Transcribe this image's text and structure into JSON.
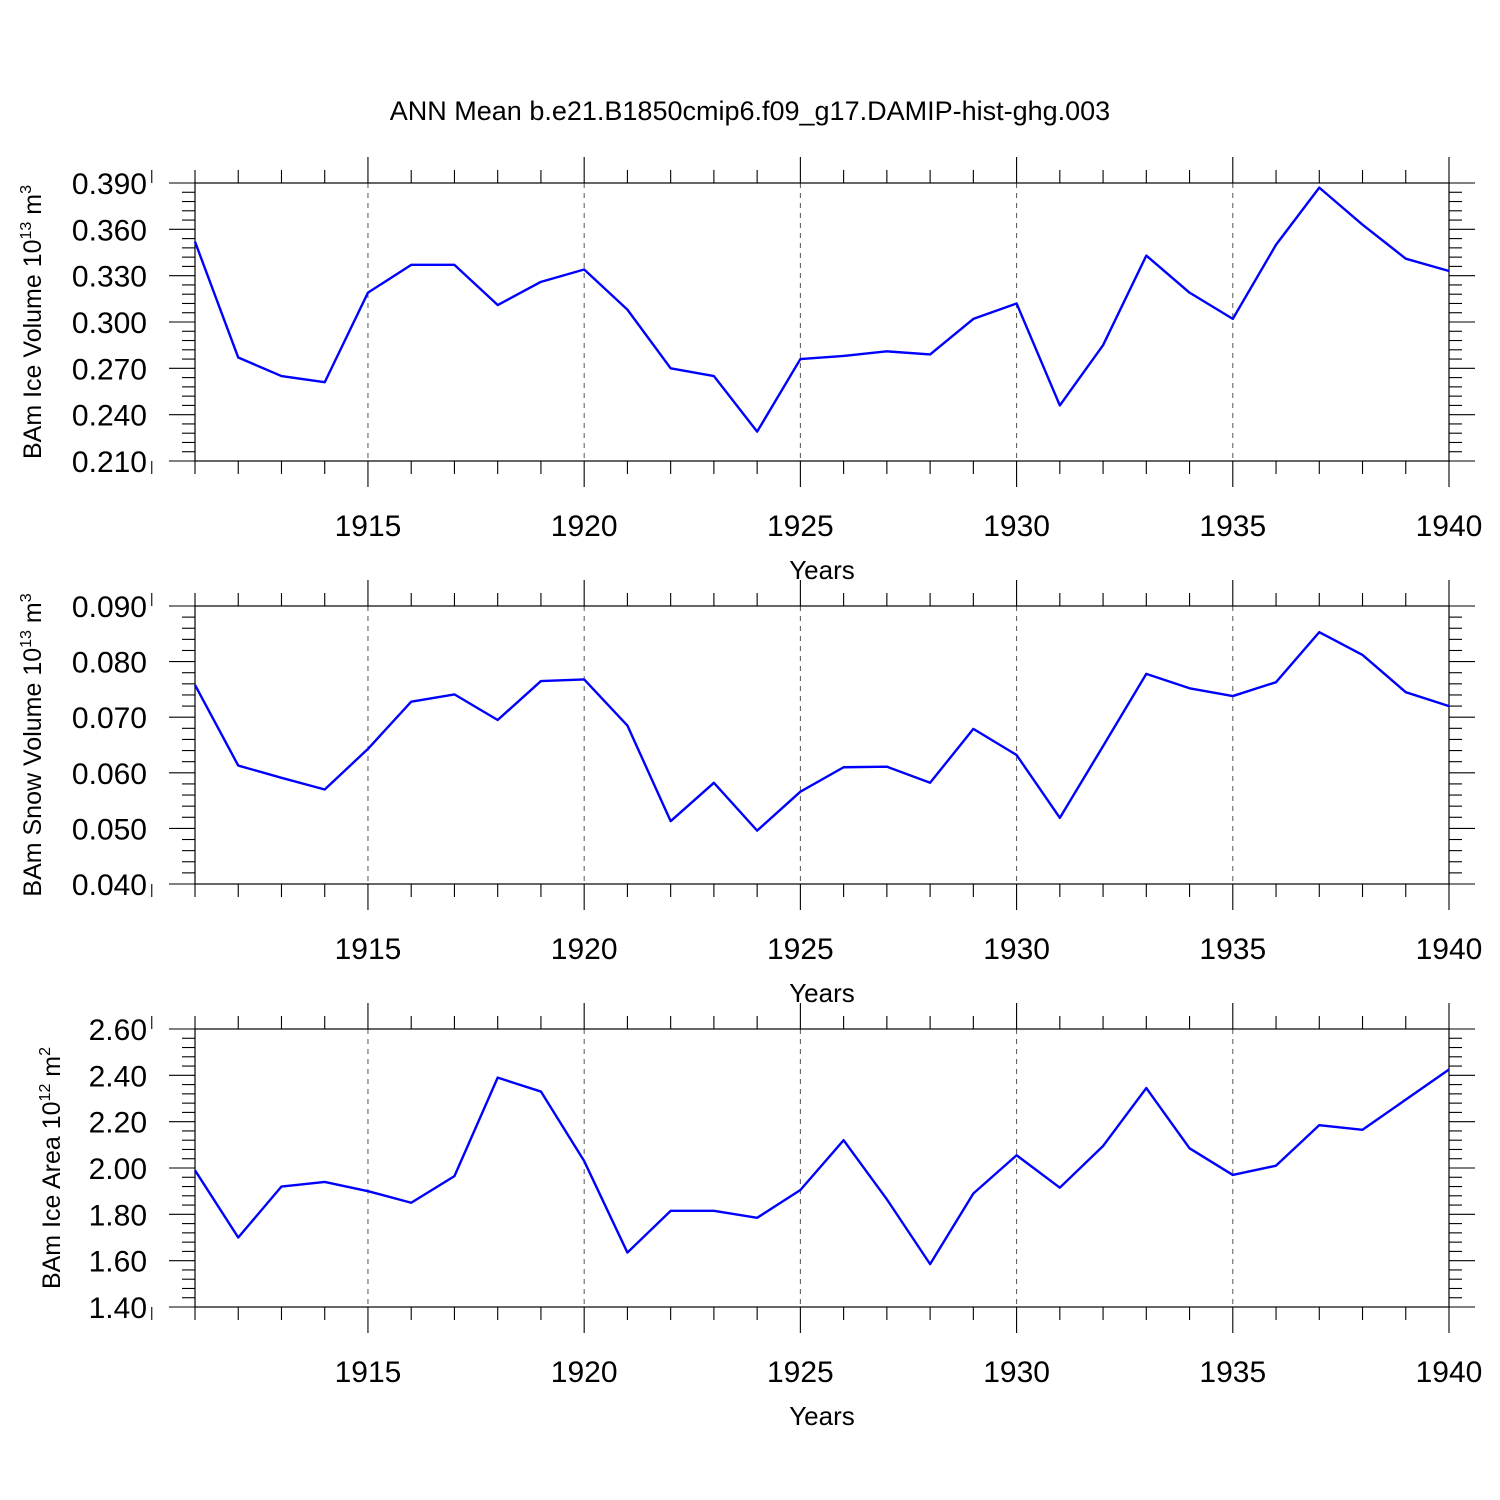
{
  "title": "ANN Mean b.e21.B1850cmip6.f09_g17.DAMIP-hist-ghg.003",
  "colors": {
    "line": "#0000ff",
    "axis": "#000000",
    "grid": "#555555"
  },
  "chart_data": [
    {
      "type": "line",
      "ylabel": "BAm Ice Volume 10",
      "ylabel_exp": "13",
      "ylabel_unit": " m",
      "ylabel_unit_exp": "3",
      "xlabel": "Years",
      "xlim": [
        1911,
        1940
      ],
      "ylim": [
        0.21,
        0.39
      ],
      "yticks": [
        "0.390",
        "0.360",
        "0.330",
        "0.300",
        "0.270",
        "0.240",
        "0.210"
      ],
      "xticks": [
        "1915",
        "1920",
        "1925",
        "1930",
        "1935",
        "1940"
      ],
      "grid": "dashed vertical at labeled years",
      "x": [
        1911,
        1912,
        1913,
        1914,
        1915,
        1916,
        1917,
        1918,
        1919,
        1920,
        1921,
        1922,
        1923,
        1924,
        1925,
        1926,
        1927,
        1928,
        1929,
        1930,
        1931,
        1932,
        1933,
        1934,
        1935,
        1936,
        1937,
        1938,
        1939,
        1940
      ],
      "series": [
        {
          "values": [
            0.352,
            0.277,
            0.265,
            0.261,
            0.319,
            0.337,
            0.337,
            0.311,
            0.326,
            0.334,
            0.308,
            0.27,
            0.265,
            0.229,
            0.276,
            0.278,
            0.281,
            0.279,
            0.302,
            0.312,
            0.246,
            0.285,
            0.343,
            0.319,
            0.302,
            0.35,
            0.387,
            0.363,
            0.341,
            0.333
          ]
        }
      ]
    },
    {
      "type": "line",
      "ylabel": "BAm Snow Volume 10",
      "ylabel_exp": "13",
      "ylabel_unit": " m",
      "ylabel_unit_exp": "3",
      "xlabel": "Years",
      "xlim": [
        1911,
        1940
      ],
      "ylim": [
        0.04,
        0.09
      ],
      "yticks": [
        "0.090",
        "0.080",
        "0.070",
        "0.060",
        "0.050",
        "0.040"
      ],
      "xticks": [
        "1915",
        "1920",
        "1925",
        "1930",
        "1935",
        "1940"
      ],
      "grid": "dashed vertical at labeled years",
      "x": [
        1911,
        1912,
        1913,
        1914,
        1915,
        1916,
        1917,
        1918,
        1919,
        1920,
        1921,
        1922,
        1923,
        1924,
        1925,
        1926,
        1927,
        1928,
        1929,
        1930,
        1931,
        1932,
        1933,
        1934,
        1935,
        1936,
        1937,
        1938,
        1939,
        1940
      ],
      "series": [
        {
          "values": [
            0.0758,
            0.0613,
            0.0591,
            0.057,
            0.0643,
            0.0728,
            0.0741,
            0.0695,
            0.0765,
            0.0768,
            0.0685,
            0.0513,
            0.0582,
            0.0496,
            0.0566,
            0.061,
            0.0611,
            0.0582,
            0.0679,
            0.0632,
            0.0519,
            0.0648,
            0.0778,
            0.0752,
            0.0738,
            0.0763,
            0.0853,
            0.0812,
            0.0745,
            0.072
          ]
        }
      ]
    },
    {
      "type": "line",
      "ylabel": "BAm Ice Area 10",
      "ylabel_exp": "12",
      "ylabel_unit": " m",
      "ylabel_unit_exp": "2",
      "xlabel": "Years",
      "xlim": [
        1911,
        1940
      ],
      "ylim": [
        1.4,
        2.6
      ],
      "yticks": [
        "2.60",
        "2.40",
        "2.20",
        "2.00",
        "1.80",
        "1.60",
        "1.40"
      ],
      "xticks": [
        "1915",
        "1920",
        "1925",
        "1930",
        "1935",
        "1940"
      ],
      "grid": "dashed vertical at labeled years",
      "x": [
        1911,
        1912,
        1913,
        1914,
        1915,
        1916,
        1917,
        1918,
        1919,
        1920,
        1921,
        1922,
        1923,
        1924,
        1925,
        1926,
        1927,
        1928,
        1929,
        1930,
        1931,
        1932,
        1933,
        1934,
        1935,
        1936,
        1937,
        1938,
        1939,
        1940
      ],
      "series": [
        {
          "values": [
            1.99,
            1.7,
            1.92,
            1.94,
            1.9,
            1.85,
            1.965,
            2.39,
            2.33,
            2.03,
            1.635,
            1.815,
            1.815,
            1.785,
            1.905,
            2.12,
            1.865,
            1.585,
            1.89,
            2.055,
            1.915,
            2.095,
            2.345,
            2.085,
            1.97,
            2.01,
            2.185,
            2.165,
            2.295,
            2.425
          ]
        }
      ]
    }
  ]
}
